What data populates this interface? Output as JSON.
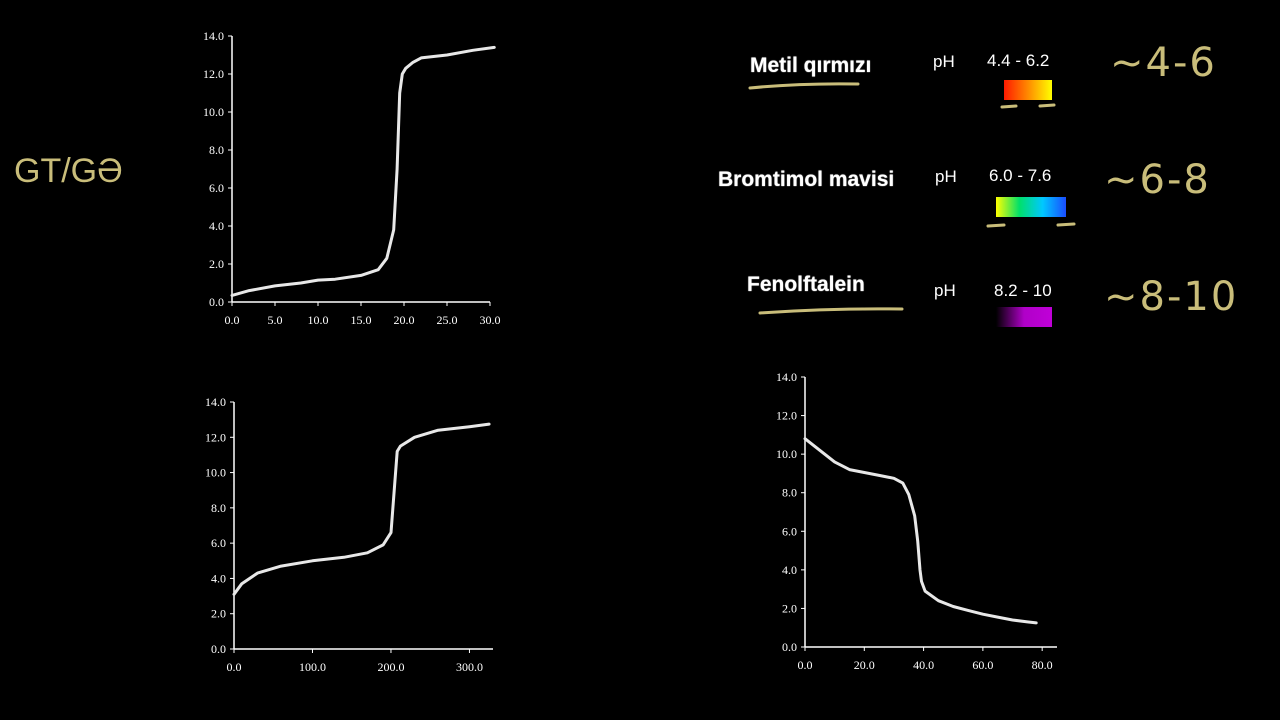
{
  "title_left": "GT/GƏ",
  "indicators": [
    {
      "name": "Metil qırmızı",
      "ph_label": "pH",
      "range": "4.4 - 6.2",
      "note": "~4-6",
      "colors": [
        "#ff1a00",
        "#ff8a00",
        "#ffff00"
      ]
    },
    {
      "name": "Bromtimol mavisi",
      "ph_label": "pH",
      "range": "6.0 - 7.6",
      "note": "~6-8",
      "colors": [
        "#ffff00",
        "#00e06a",
        "#00c8ff",
        "#1a4dff"
      ]
    },
    {
      "name": "Fenolftalein",
      "ph_label": "pH",
      "range": "8.2 - 10",
      "note": "~8-10",
      "colors": [
        "#000000",
        "#b000c8",
        "#c000d8"
      ]
    }
  ],
  "accent_color": "#c9bd7a",
  "chart_data": [
    {
      "type": "line",
      "title": "",
      "xlabel": "",
      "ylabel": "",
      "xlim": [
        0,
        30
      ],
      "ylim": [
        0,
        14
      ],
      "x_ticks": [
        "0.0",
        "5.0",
        "10.0",
        "15.0",
        "20.0",
        "25.0",
        "30.0"
      ],
      "y_ticks": [
        "0.0",
        "2.0",
        "4.0",
        "6.0",
        "8.0",
        "10.0",
        "12.0",
        "14.0"
      ],
      "x": [
        0,
        2,
        5,
        8,
        10,
        12,
        15,
        17,
        18,
        18.8,
        19.2,
        19.5,
        19.8,
        20.2,
        21,
        22,
        25,
        28,
        30.5
      ],
      "y": [
        0.35,
        0.6,
        0.85,
        1.0,
        1.15,
        1.2,
        1.4,
        1.7,
        2.3,
        3.8,
        7,
        11,
        12.0,
        12.3,
        12.6,
        12.85,
        13.0,
        13.25,
        13.4
      ]
    },
    {
      "type": "line",
      "title": "",
      "xlabel": "",
      "ylabel": "",
      "xlim": [
        0,
        330
      ],
      "ylim": [
        0,
        14
      ],
      "x_ticks": [
        "0.0",
        "100.0",
        "200.0",
        "300.0"
      ],
      "y_ticks": [
        "0.0",
        "2.0",
        "4.0",
        "6.0",
        "8.0",
        "10.0",
        "12.0",
        "14.0"
      ],
      "x": [
        0,
        10,
        30,
        60,
        100,
        140,
        170,
        190,
        200,
        205,
        208,
        212,
        230,
        260,
        300,
        325
      ],
      "y": [
        3.1,
        3.7,
        4.3,
        4.7,
        5.0,
        5.2,
        5.45,
        5.9,
        6.6,
        9.5,
        11.2,
        11.5,
        12.0,
        12.4,
        12.6,
        12.75
      ]
    },
    {
      "type": "line",
      "title": "",
      "xlabel": "",
      "ylabel": "",
      "xlim": [
        0,
        85
      ],
      "ylim": [
        0,
        14
      ],
      "x_ticks": [
        "0.0",
        "20.0",
        "40.0",
        "60.0",
        "80.0"
      ],
      "y_ticks": [
        "0.0",
        "2.0",
        "4.0",
        "6.0",
        "8.0",
        "10.0",
        "12.0",
        "14.0"
      ],
      "x": [
        0,
        5,
        10,
        15,
        20,
        25,
        30,
        33,
        35,
        37,
        38,
        38.8,
        39.3,
        40.5,
        45,
        50,
        55,
        60,
        65,
        70,
        75,
        78
      ],
      "y": [
        10.8,
        10.2,
        9.6,
        9.2,
        9.05,
        8.9,
        8.75,
        8.5,
        7.9,
        6.8,
        5.5,
        4.0,
        3.4,
        2.9,
        2.4,
        2.1,
        1.9,
        1.7,
        1.55,
        1.4,
        1.3,
        1.25
      ]
    }
  ]
}
